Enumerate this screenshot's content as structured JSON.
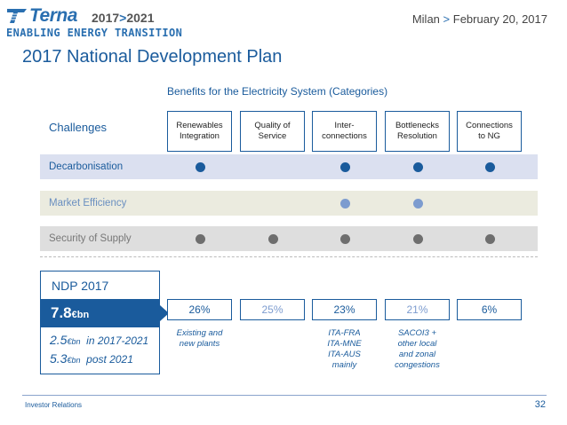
{
  "header": {
    "brand": "Terna",
    "years_start": "2017",
    "years_sep": ">",
    "years_end": "2021",
    "tagline": "ENABLING ENERGY TRANSITION",
    "event_city": "Milan",
    "event_sep": ">",
    "event_date": "February 20, 2017"
  },
  "title": "2017 National Development Plan",
  "benefits_title": "Benefits for the Electricity System (Categories)",
  "challenges_label": "Challenges",
  "categories": [
    {
      "label_1": "Renewables",
      "label_2": "Integration"
    },
    {
      "label_1": "Quality of",
      "label_2": "Service"
    },
    {
      "label_1": "Inter-",
      "label_2": "connections"
    },
    {
      "label_1": "Bottlenecks",
      "label_2": "Resolution"
    },
    {
      "label_1": "Connections",
      "label_2": "to NG"
    }
  ],
  "challenges": [
    {
      "label": "Decarbonisation",
      "color": "#1a5b9c",
      "benefits": [
        true,
        false,
        true,
        true,
        true
      ]
    },
    {
      "label": "Market Efficiency",
      "color": "#7d9ccf",
      "benefits": [
        false,
        false,
        true,
        true,
        false
      ]
    },
    {
      "label": "Security of Supply",
      "color": "#6e6e6e",
      "benefits": [
        true,
        true,
        true,
        true,
        true
      ]
    }
  ],
  "ndp": {
    "label": "NDP 2017",
    "total_value": "7.8",
    "total_unit": "€bn",
    "split": [
      {
        "value": "2.5",
        "unit": "€bn",
        "period": "in 2017-2021"
      },
      {
        "value": "5.3",
        "unit": "€bn",
        "period": "post 2021"
      }
    ]
  },
  "shares": [
    "26%",
    "25%",
    "23%",
    "21%",
    "6%"
  ],
  "notes": [
    [
      "Existing and",
      "new plants"
    ],
    [],
    [
      "ITA-FRA",
      "ITA-MNE",
      "ITA-AUS",
      "mainly"
    ],
    [
      "SACOI3 +",
      "other local",
      "and zonal",
      "congestions"
    ],
    []
  ],
  "footer": {
    "section": "Investor Relations",
    "page": "32"
  }
}
